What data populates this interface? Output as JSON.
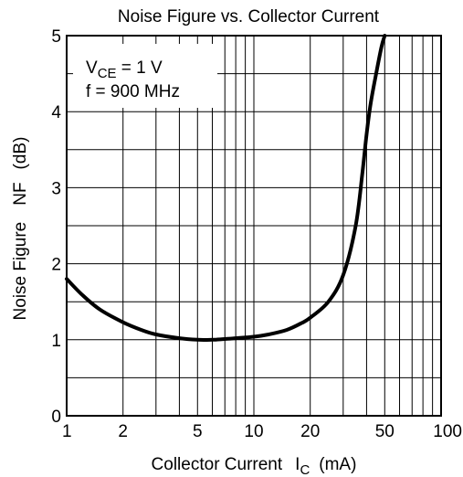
{
  "chart_data": {
    "type": "line",
    "title": "Noise Figure vs. Collector Current",
    "xlabel": "Collector Current",
    "xlabel_symbol": "I",
    "xlabel_symbol_sub": "C",
    "xlabel_unit": "(mA)",
    "ylabel": "Noise Figure",
    "ylabel_symbol": "NF",
    "ylabel_unit": "(dB)",
    "x_scale": "log",
    "xlim": [
      1,
      100
    ],
    "ylim": [
      0,
      5
    ],
    "x_ticks": [
      1,
      2,
      5,
      10,
      20,
      50,
      100
    ],
    "x_tick_labels": [
      "1",
      "2",
      "5",
      "10",
      "20",
      "50",
      "100"
    ],
    "y_ticks": [
      0,
      1,
      2,
      3,
      4,
      5
    ],
    "y_tick_labels": [
      "0",
      "1",
      "2",
      "3",
      "4",
      "5"
    ],
    "grid": true,
    "condition_box": {
      "vce_prefix": "V",
      "vce_sub": "CE",
      "vce_value": " = 1 V",
      "freq": "f = 900 MHz"
    },
    "series": [
      {
        "color": "#000000",
        "x": [
          1,
          1.2,
          1.5,
          2,
          2.5,
          3,
          4,
          5,
          6,
          7,
          8,
          10,
          12,
          15,
          18,
          20,
          25,
          30,
          35,
          38,
          40,
          42,
          45,
          48,
          50
        ],
        "y": [
          1.8,
          1.6,
          1.4,
          1.23,
          1.13,
          1.07,
          1.02,
          1.0,
          1.0,
          1.01,
          1.02,
          1.04,
          1.07,
          1.13,
          1.22,
          1.29,
          1.5,
          1.85,
          2.5,
          3.2,
          3.7,
          4.1,
          4.5,
          4.85,
          5.0
        ]
      }
    ]
  }
}
